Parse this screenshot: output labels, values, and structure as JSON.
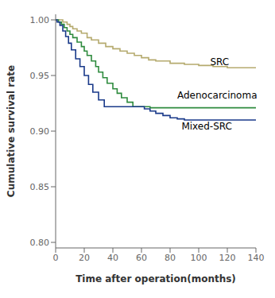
{
  "chart_data": {
    "type": "step",
    "title": "",
    "xlabel": "Time after operation(months)",
    "ylabel": "Cumulative survival rate",
    "xlim": [
      0,
      140
    ],
    "ylim": [
      0.795,
      1.005
    ],
    "xticks": [
      0,
      20,
      40,
      60,
      80,
      100,
      120,
      140
    ],
    "yticks": [
      {
        "value": 0.8,
        "label": "0.80"
      },
      0.85,
      {
        "value": 0.9,
        "label": "0.90"
      },
      0.95,
      {
        "value": 1.0,
        "label": "1.00"
      }
    ],
    "grid": false,
    "series": [
      {
        "color": "#b5aa6e",
        "x": [
          0,
          2,
          5,
          8,
          10,
          12,
          15,
          18,
          22,
          25,
          30,
          35,
          40,
          45,
          50,
          55,
          60,
          65,
          70,
          80,
          90,
          100,
          110,
          120,
          130,
          140
        ],
        "values": [
          1.0,
          1.0,
          0.998,
          0.996,
          0.994,
          0.992,
          0.99,
          0.988,
          0.984,
          0.982,
          0.979,
          0.976,
          0.974,
          0.972,
          0.97,
          0.968,
          0.966,
          0.964,
          0.963,
          0.961,
          0.96,
          0.959,
          0.958,
          0.957,
          0.957,
          0.957
        ]
      },
      {
        "color": "#2e8b3e",
        "x": [
          0,
          2,
          4,
          6,
          8,
          10,
          12,
          15,
          18,
          20,
          22,
          25,
          28,
          30,
          33,
          36,
          40,
          43,
          46,
          50,
          54,
          58,
          62,
          66,
          70,
          75,
          80,
          85,
          90,
          100,
          110,
          120,
          130,
          140
        ],
        "values": [
          1.0,
          0.998,
          0.996,
          0.993,
          0.99,
          0.987,
          0.984,
          0.98,
          0.976,
          0.972,
          0.968,
          0.963,
          0.958,
          0.953,
          0.948,
          0.943,
          0.938,
          0.934,
          0.93,
          0.926,
          0.922,
          0.922,
          0.922,
          0.921,
          0.921,
          0.921,
          0.921,
          0.921,
          0.921,
          0.921,
          0.921,
          0.921,
          0.921,
          0.921
        ]
      },
      {
        "color": "#1a3a8a",
        "x": [
          0,
          1,
          3,
          5,
          7,
          9,
          11,
          14,
          17,
          20,
          23,
          26,
          30,
          34,
          38,
          42,
          46,
          50,
          54,
          58,
          62,
          66,
          70,
          75,
          80,
          85,
          90,
          100,
          110,
          120,
          130,
          140
        ],
        "values": [
          1.0,
          0.998,
          0.995,
          0.99,
          0.985,
          0.979,
          0.973,
          0.965,
          0.958,
          0.95,
          0.942,
          0.935,
          0.928,
          0.922,
          0.922,
          0.922,
          0.922,
          0.922,
          0.922,
          0.922,
          0.92,
          0.918,
          0.916,
          0.914,
          0.912,
          0.911,
          0.91,
          0.91,
          0.91,
          0.91,
          0.91,
          0.91
        ]
      }
    ],
    "annotations": [
      {
        "text": "SRC",
        "x": 108,
        "y": 0.962,
        "color": "#000000"
      },
      {
        "text": "Adenocarcinoma",
        "x": 85,
        "y": 0.932,
        "color": "#000000"
      },
      {
        "text": "Mixed-SRC",
        "x": 88,
        "y": 0.904,
        "color": "#000000"
      }
    ]
  }
}
